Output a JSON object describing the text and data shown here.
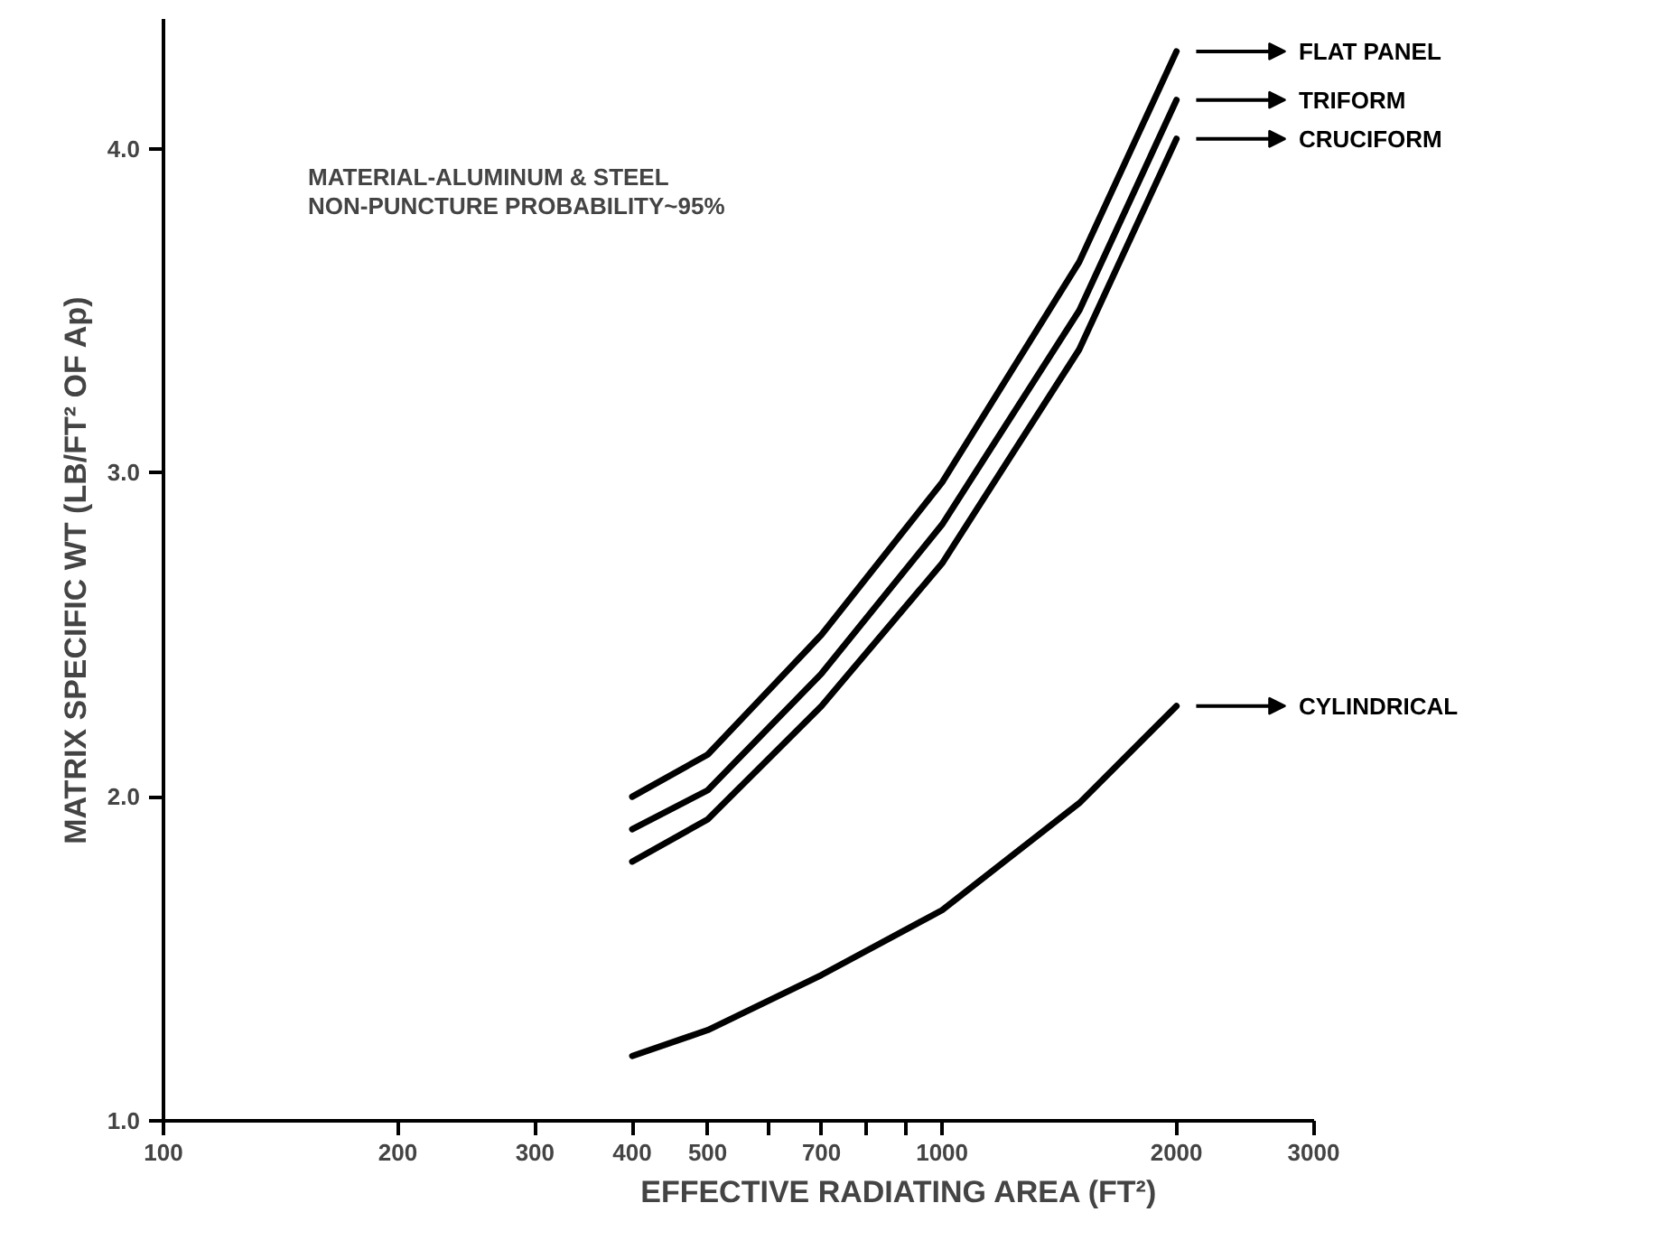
{
  "chart_data": {
    "type": "line",
    "xlabel": "EFFECTIVE RADIATING AREA (FT²)",
    "ylabel": "MATRIX SPECIFIC WT (LB/FT² OF Ap)",
    "annotations": [
      "MATERIAL-ALUMINUM & STEEL",
      "NON-PUNCTURE PROBABILITY~95%"
    ],
    "x": [
      400,
      500,
      700,
      1000,
      1500,
      2000
    ],
    "series": [
      {
        "name": "FLAT PANEL",
        "color": "#000000",
        "values": [
          2.0,
          2.13,
          2.5,
          2.97,
          3.65,
          4.3
        ]
      },
      {
        "name": "TRIFORM",
        "color": "#000000",
        "values": [
          1.9,
          2.02,
          2.38,
          2.84,
          3.5,
          4.15
        ]
      },
      {
        "name": "CRUCIFORM",
        "color": "#000000",
        "values": [
          1.8,
          1.93,
          2.28,
          2.72,
          3.38,
          4.03
        ]
      },
      {
        "name": "CYLINDRICAL",
        "color": "#000000",
        "values": [
          1.2,
          1.28,
          1.45,
          1.65,
          1.98,
          2.28
        ]
      }
    ],
    "log": "x",
    "xlim": [
      100,
      3000
    ],
    "ylim": [
      1.0,
      4.4
    ],
    "xticks": [
      100,
      200,
      300,
      400,
      500,
      {
        "value": 600,
        "label": null
      },
      700,
      {
        "value": 800,
        "label": null
      },
      {
        "value": 900,
        "label": null
      },
      1000,
      2000,
      3000
    ],
    "yticks": [
      {
        "value": 1.0,
        "label": "1.0"
      },
      {
        "value": 2.0,
        "label": "2.0"
      },
      {
        "value": 3.0,
        "label": "3.0"
      },
      {
        "value": 4.0,
        "label": "4.0"
      }
    ],
    "grid": false,
    "legend": "right",
    "marker": "none",
    "line_style": "solid"
  }
}
